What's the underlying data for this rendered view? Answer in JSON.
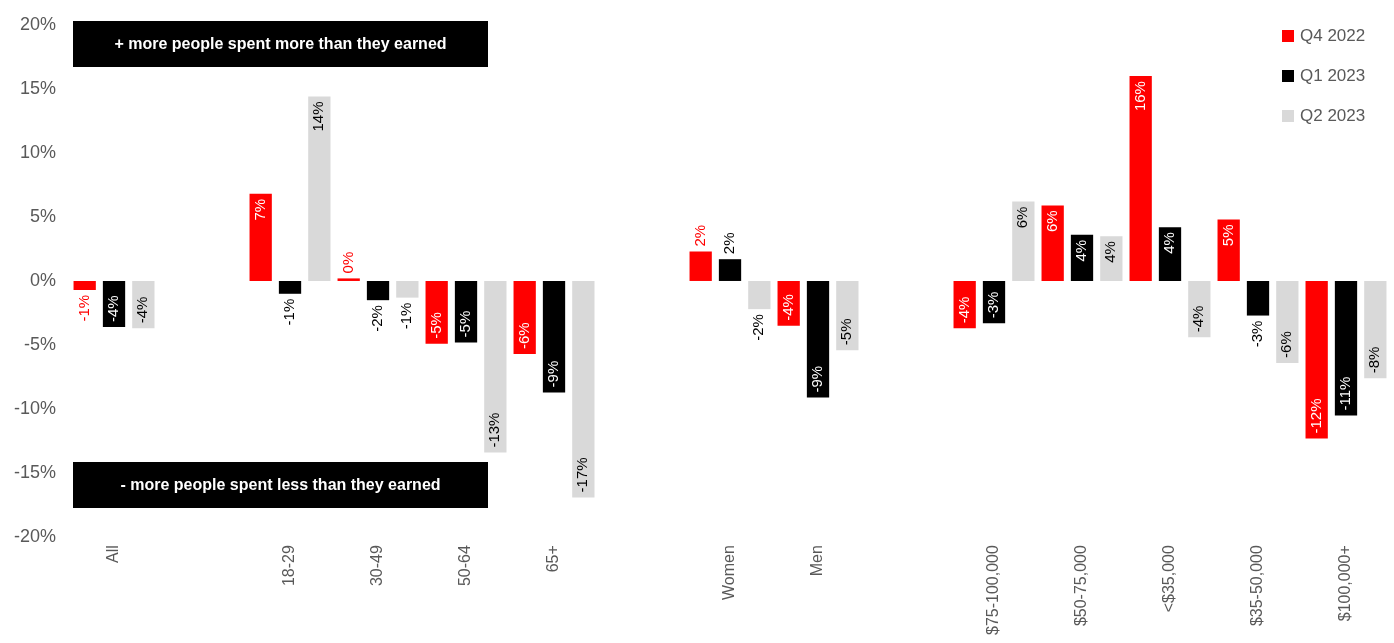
{
  "chart_data": {
    "type": "bar",
    "categories": [
      "All",
      null,
      "18-29",
      "30-49",
      "50-64",
      "65+",
      null,
      "Women",
      "Men",
      null,
      "$75-100,000",
      "$50-75,000",
      "<$35,000",
      "$35-50,000",
      "$100,000+"
    ],
    "series": [
      {
        "name": "Q4 2022",
        "color": "#ff0000",
        "values": [
          -0.7,
          null,
          6.8,
          0.2,
          -4.9,
          -5.7,
          null,
          2.3,
          -3.5,
          null,
          -3.7,
          5.9,
          16.0,
          4.8,
          -12.3
        ],
        "value_labels": [
          "-1%",
          null,
          "7%",
          "0%",
          "-5%",
          "-6%",
          null,
          "2%",
          "-4%",
          null,
          "-4%",
          "6%",
          "16%",
          "5%",
          "-12%"
        ]
      },
      {
        "name": "Q1 2023",
        "color": "#000000",
        "values": [
          -3.6,
          null,
          -1.0,
          -1.5,
          -4.8,
          -8.7,
          null,
          1.7,
          -9.1,
          null,
          -3.3,
          3.6,
          4.2,
          -2.7,
          -10.5
        ],
        "value_labels": [
          "-4%",
          null,
          "-1%",
          "-2%",
          "-5%",
          "-9%",
          null,
          "2%",
          "-9%",
          null,
          "-3%",
          "4%",
          "4%",
          "-3%",
          "-11%"
        ]
      },
      {
        "name": "Q2 2023",
        "color": "#d9d9d9",
        "values": [
          -3.7,
          null,
          14.4,
          -1.3,
          -13.4,
          -16.9,
          null,
          -2.2,
          -5.4,
          null,
          6.2,
          3.5,
          -4.4,
          -6.4,
          -7.6
        ],
        "value_labels": [
          "-4%",
          null,
          "14%",
          "-1%",
          "-13%",
          "-17%",
          null,
          "-2%",
          "-5%",
          null,
          "6%",
          "4%",
          "-4%",
          "-6%",
          "-8%"
        ]
      }
    ],
    "ylim": [
      -20,
      20
    ],
    "yticks": [
      {
        "value": -20,
        "label": "-20%"
      },
      {
        "value": -15,
        "label": "-15%"
      },
      {
        "value": -10,
        "label": "-10%"
      },
      {
        "value": -5,
        "label": "-5%"
      },
      {
        "value": 0,
        "label": "0%"
      },
      {
        "value": 5,
        "label": "5%"
      },
      {
        "value": 10,
        "label": "10%"
      },
      {
        "value": 15,
        "label": "15%"
      },
      {
        "value": 20,
        "label": "20%"
      }
    ],
    "annotations": [
      "+ more people spent more than they earned",
      "- more people spent less than they earned"
    ],
    "grid": false,
    "legend": "top right"
  }
}
